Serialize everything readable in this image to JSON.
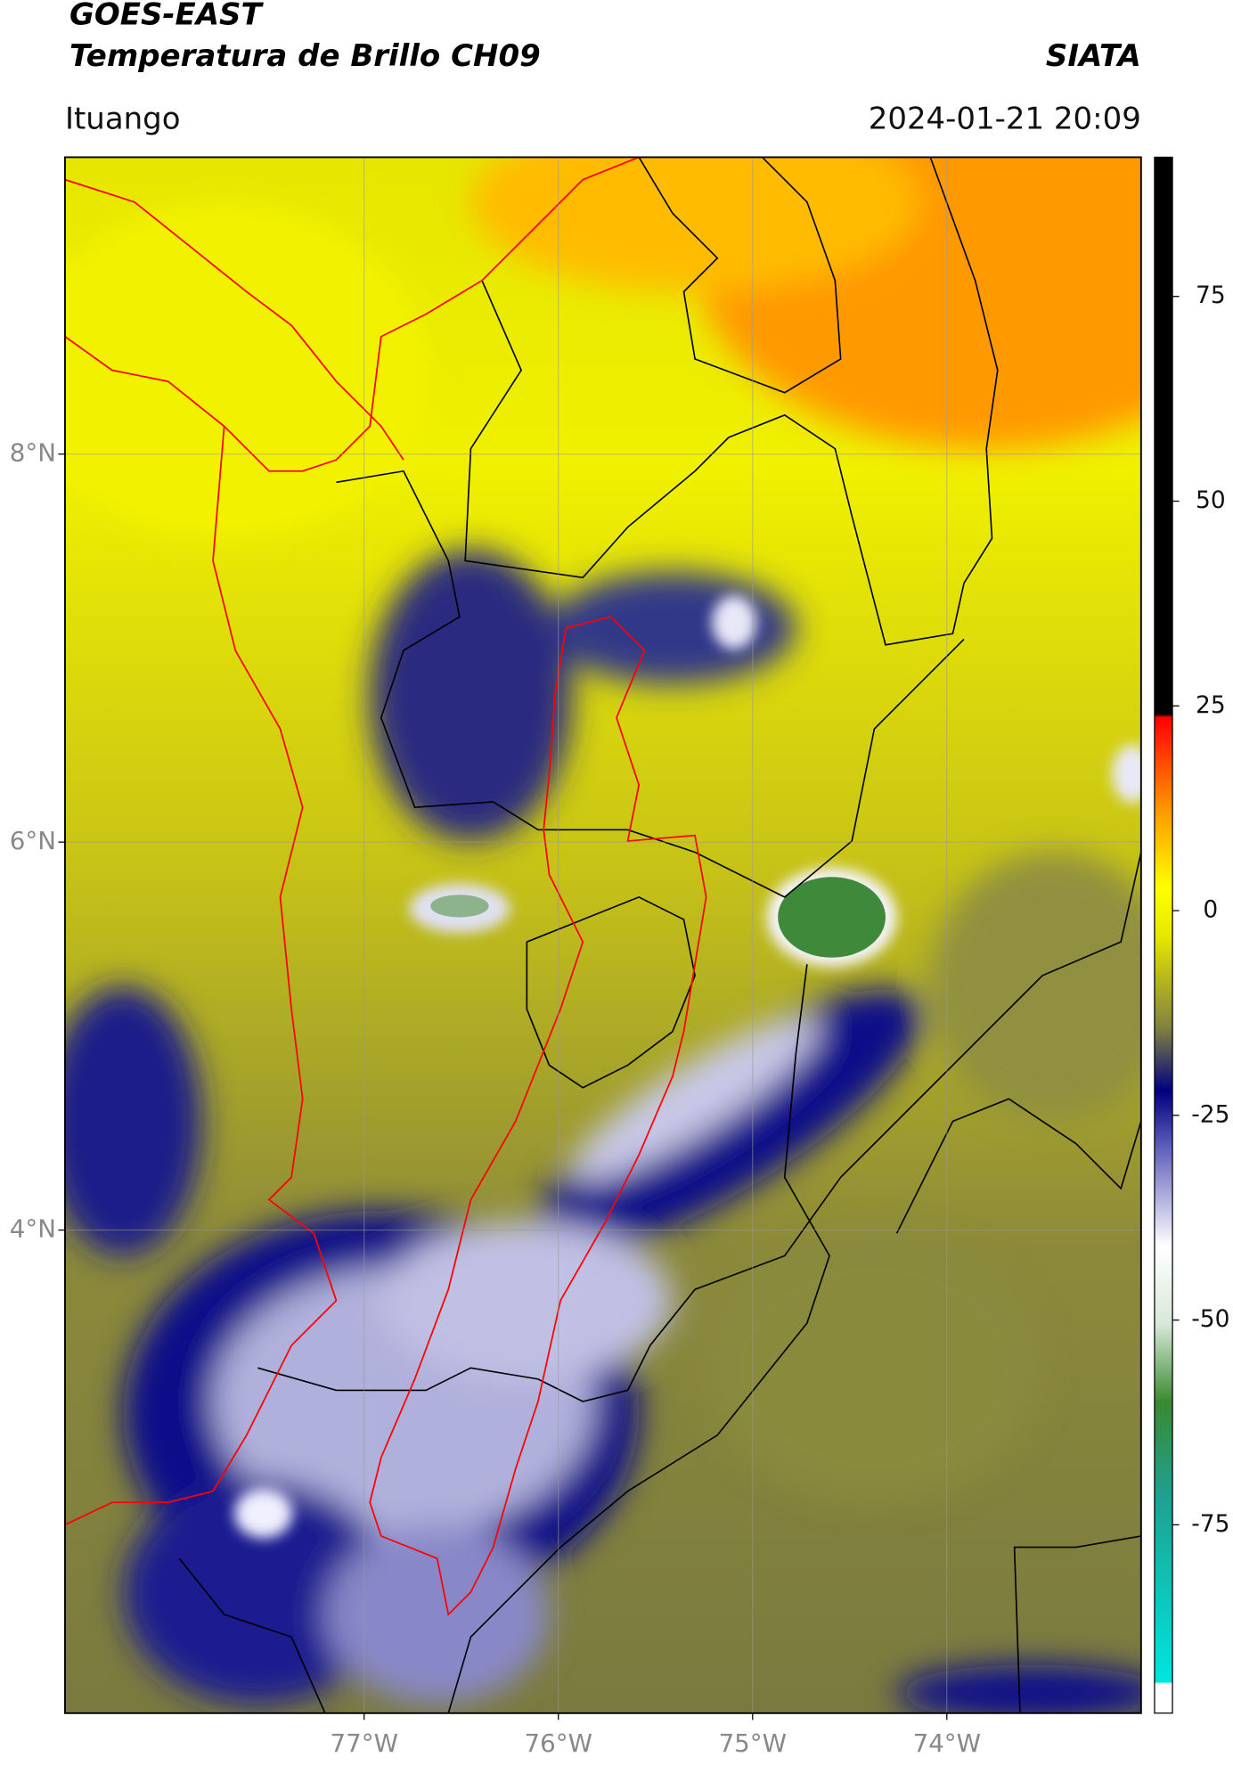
{
  "header": {
    "title": "GOES-EAST",
    "subtitle": "Temperatura de Brillo CH09",
    "source": "SIATA",
    "location": "Ituango",
    "datetime": "2024-01-21 20:09"
  },
  "map": {
    "xlim": [
      -78.54,
      -73.0
    ],
    "ylim": [
      1.51,
      9.53
    ],
    "xticks": [
      {
        "value": -77,
        "label": "77°W"
      },
      {
        "value": -76,
        "label": "76°W"
      },
      {
        "value": -75,
        "label": "75°W"
      },
      {
        "value": -74,
        "label": "74°W"
      }
    ],
    "yticks": [
      {
        "value": 4,
        "label": "4°N"
      },
      {
        "value": 6,
        "label": "6°N"
      },
      {
        "value": 8,
        "label": "8°N"
      }
    ],
    "grid": true
  },
  "colorbar": {
    "lim": [
      -98,
      92
    ],
    "ticks": [
      75,
      50,
      25,
      0,
      -25,
      -50,
      -75
    ]
  }
}
